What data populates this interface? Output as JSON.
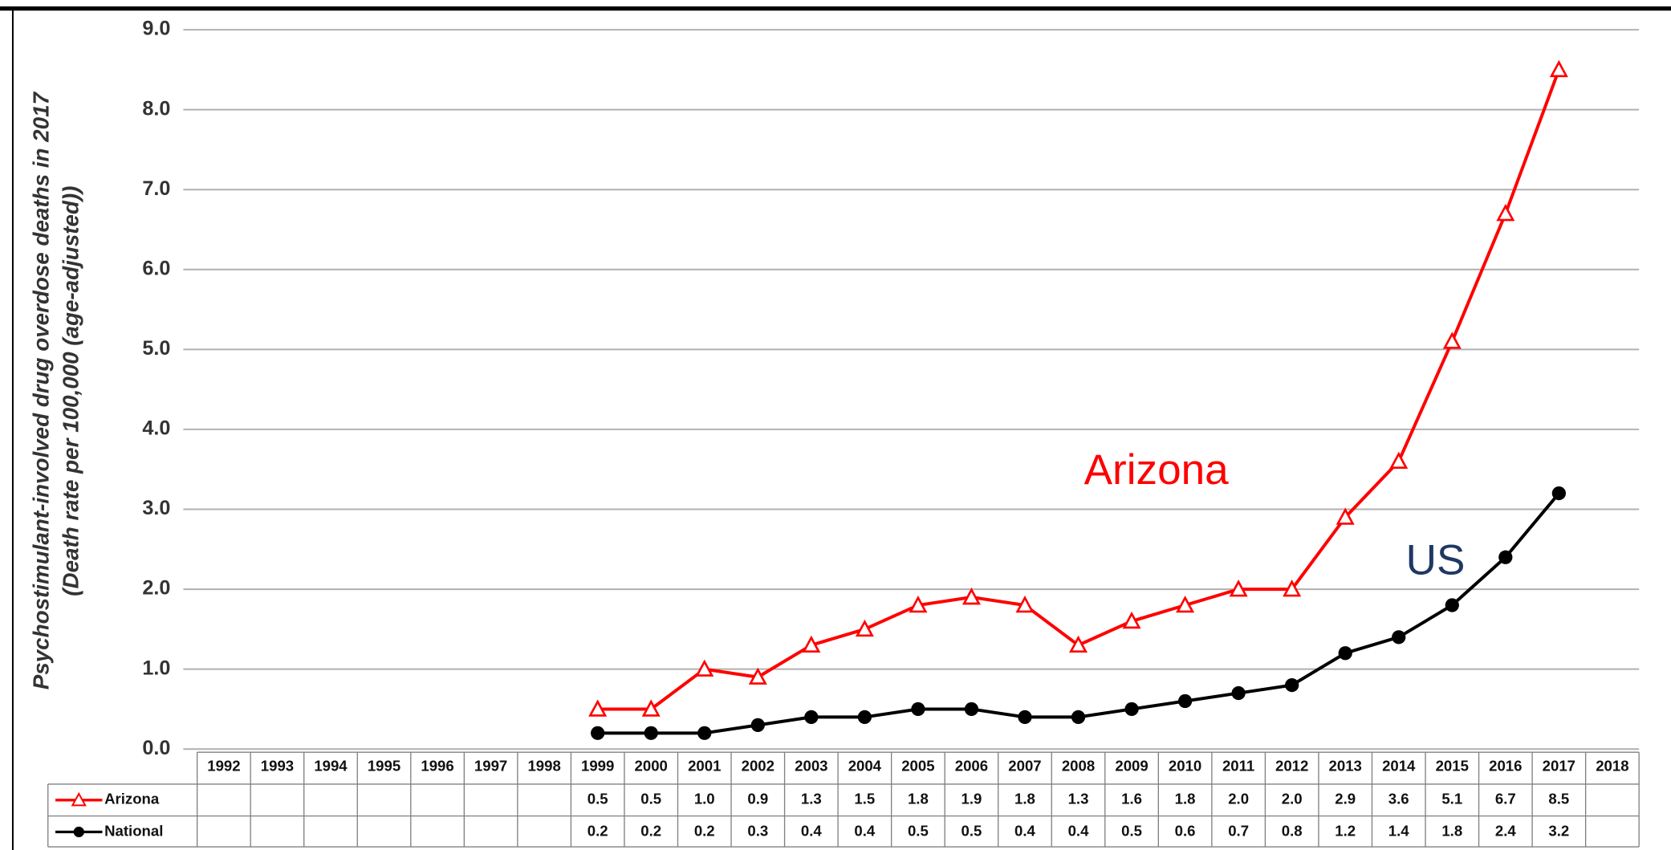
{
  "chart_data": {
    "type": "line",
    "y_label": [
      "Psychostimulant-involved drug overdose deaths in 2017",
      "(Death rate per 100,000 (age-adjusted))"
    ],
    "categories": [
      "1992",
      "1993",
      "1994",
      "1995",
      "1996",
      "1997",
      "1998",
      "1999",
      "2000",
      "2001",
      "2002",
      "2003",
      "2004",
      "2005",
      "2006",
      "2007",
      "2008",
      "2009",
      "2010",
      "2011",
      "2012",
      "2013",
      "2014",
      "2015",
      "2016",
      "2017",
      "2018"
    ],
    "series": [
      {
        "name": "Arizona",
        "color": "#ff0000",
        "marker": "triangle",
        "values": [
          null,
          null,
          null,
          null,
          null,
          null,
          null,
          0.5,
          0.5,
          1,
          0.9,
          1.3,
          1.5,
          1.8,
          1.9,
          1.8,
          1.3,
          1.6,
          1.8,
          2,
          2,
          2.9,
          3.6,
          5.1,
          6.7,
          8.5,
          null
        ],
        "value_labels": [
          null,
          null,
          null,
          null,
          null,
          null,
          null,
          "0.5",
          "0.5",
          "1.0",
          "0.9",
          "1.3",
          "1.5",
          "1.8",
          "1.9",
          "1.8",
          "1.3",
          "1.6",
          "1.8",
          "2.0",
          "2.0",
          "2.9",
          "3.6",
          "5.1",
          "6.7",
          "8.5",
          null
        ]
      },
      {
        "name": "National",
        "color": "#000000",
        "marker": "circle",
        "values": [
          null,
          null,
          null,
          null,
          null,
          null,
          null,
          0.2,
          0.2,
          0.2,
          0.3,
          0.4,
          0.4,
          0.5,
          0.5,
          0.4,
          0.4,
          0.5,
          0.6,
          0.7,
          0.8,
          1.2,
          1.4,
          1.8,
          2.4,
          3.2,
          null
        ],
        "value_labels": [
          null,
          null,
          null,
          null,
          null,
          null,
          null,
          "0.2",
          "0.2",
          "0.2",
          "0.3",
          "0.4",
          "0.4",
          "0.5",
          "0.5",
          "0.4",
          "0.4",
          "0.5",
          "0.6",
          "0.7",
          "0.8",
          "1.2",
          "1.4",
          "1.8",
          "2.4",
          "3.2",
          null
        ]
      }
    ],
    "annotations": [
      {
        "text": "Arizona",
        "color": "#ff0000"
      },
      {
        "text": "US",
        "color": "#1f3864"
      }
    ],
    "ylim": [
      0,
      9
    ],
    "yticks": [
      {
        "value": 0,
        "label": "0.0"
      },
      {
        "value": 1,
        "label": "1.0"
      },
      {
        "value": 2,
        "label": "2.0"
      },
      {
        "value": 3,
        "label": "3.0"
      },
      {
        "value": 4,
        "label": "4.0"
      },
      {
        "value": 5,
        "label": "5.0"
      },
      {
        "value": 6,
        "label": "6.0"
      },
      {
        "value": 7,
        "label": "7.0"
      },
      {
        "value": 8,
        "label": "8.0"
      },
      {
        "value": 9,
        "label": "9.0"
      }
    ],
    "grid": true
  }
}
